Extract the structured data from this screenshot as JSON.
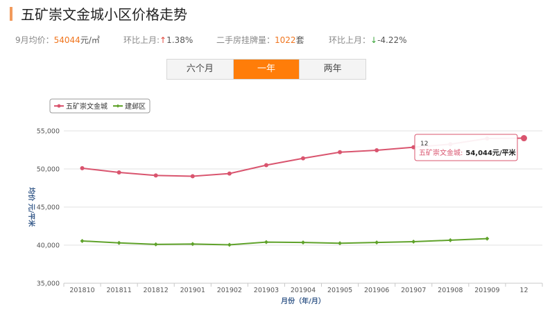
{
  "header": {
    "title": "五矿崇文金城小区价格走势"
  },
  "stats": {
    "avg_label": "9月均价：",
    "avg_value": "54044",
    "avg_unit": "元/㎡",
    "mom1_label": "环比上月:",
    "mom1_arrow": "↑",
    "mom1_value": "1.38%",
    "listing_label": "二手房挂牌量：",
    "listing_value": "1022",
    "listing_unit": "套",
    "mom2_label": "环比上月：",
    "mom2_arrow": "↓",
    "mom2_value": "-4.22%"
  },
  "tabs": [
    {
      "label": "六个月"
    },
    {
      "label": "一年"
    },
    {
      "label": "两年"
    }
  ],
  "chart_data": {
    "type": "line",
    "categories": [
      "201810",
      "201811",
      "201812",
      "201901",
      "201902",
      "201903",
      "201904",
      "201905",
      "201906",
      "201907",
      "201908",
      "201909",
      "12"
    ],
    "series": [
      {
        "name": "五矿崇文金城",
        "color": "#d9546e",
        "values": [
          50100,
          49550,
          49150,
          49050,
          49400,
          50500,
          51400,
          52200,
          52450,
          52850,
          53250,
          54000,
          54044
        ]
      },
      {
        "name": "建邺区",
        "color": "#5fa22a",
        "values": [
          40550,
          40300,
          40100,
          40150,
          40050,
          40400,
          40350,
          40250,
          40350,
          40450,
          40650,
          40850,
          null
        ]
      }
    ],
    "yticks": [
      "35,000",
      "40,000",
      "45,000",
      "50,000",
      "55,000"
    ],
    "ylim": [
      35000,
      55000
    ],
    "ylabel": "均价 元/平米",
    "xlabel": "月份（年/月）",
    "legend_position": "top-left",
    "grid": true,
    "tooltip": {
      "category": "12",
      "series": "五矿崇文金城:",
      "value": "54,044元/平米"
    }
  }
}
